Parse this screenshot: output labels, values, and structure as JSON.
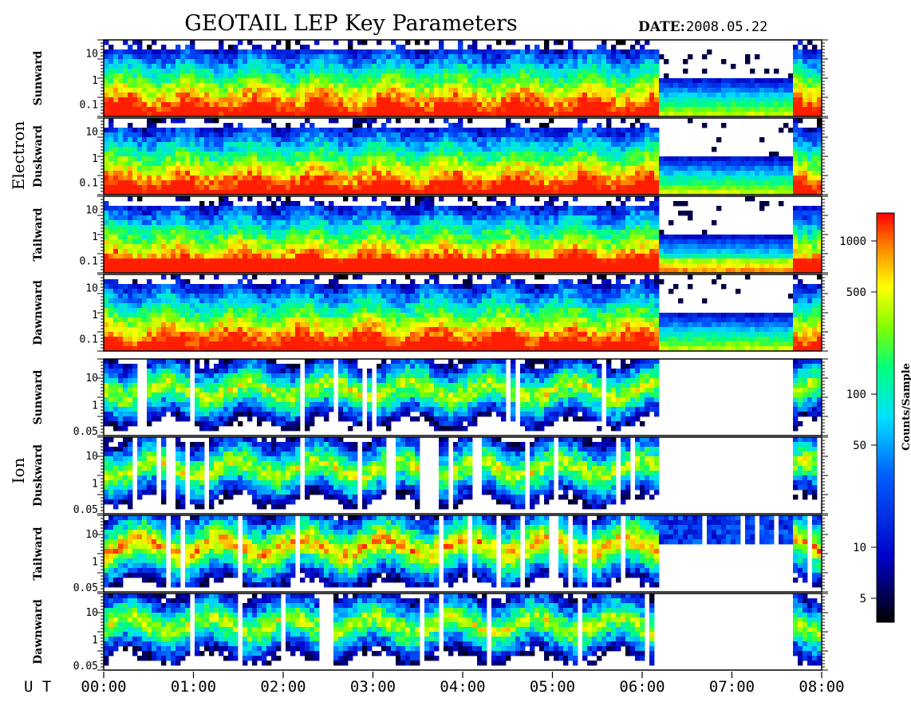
{
  "header": {
    "title": "GEOTAIL LEP Key Parameters",
    "date_label": "DATE:",
    "date_value": "2008.05.22"
  },
  "chart_data": {
    "type": "heatmap",
    "title": "GEOTAIL LEP Key Parameters",
    "x_axis": {
      "label": "U T",
      "range": [
        "00:00",
        "08:00"
      ],
      "ticks": [
        "00:00",
        "01:00",
        "02:00",
        "03:00",
        "04:00",
        "05:00",
        "06:00",
        "07:00",
        "08:00"
      ]
    },
    "groups": [
      {
        "name": "Electron",
        "panels": [
          {
            "label": "Sunward",
            "y_ticks": [
              "10",
              "1",
              "0.1"
            ]
          },
          {
            "label": "Duskward",
            "y_ticks": [
              "10",
              "1",
              "0.1"
            ]
          },
          {
            "label": "Tailward",
            "y_ticks": [
              "10",
              "1",
              "0.1"
            ]
          },
          {
            "label": "Dawnward",
            "y_ticks": [
              "10",
              "1",
              "0.1"
            ]
          }
        ]
      },
      {
        "name": "Ion",
        "panels": [
          {
            "label": "Sunward",
            "y_ticks": [
              "10",
              "1",
              "0.05"
            ]
          },
          {
            "label": "Duskward",
            "y_ticks": [
              "10",
              "1",
              "0.05"
            ]
          },
          {
            "label": "Tailward",
            "y_ticks": [
              "10",
              "1",
              "0.05"
            ]
          },
          {
            "label": "Dawnward",
            "y_ticks": [
              "10",
              "1",
              "0.05"
            ]
          }
        ]
      }
    ],
    "colorbar": {
      "label": "Counts/Sample",
      "scale": "log",
      "ticks": [
        "1000",
        "500",
        "100",
        "50",
        "10",
        "5"
      ],
      "colors": [
        "#000000",
        "#0000ff",
        "#00ffff",
        "#00ff00",
        "#ffff00",
        "#ff0000"
      ]
    }
  }
}
